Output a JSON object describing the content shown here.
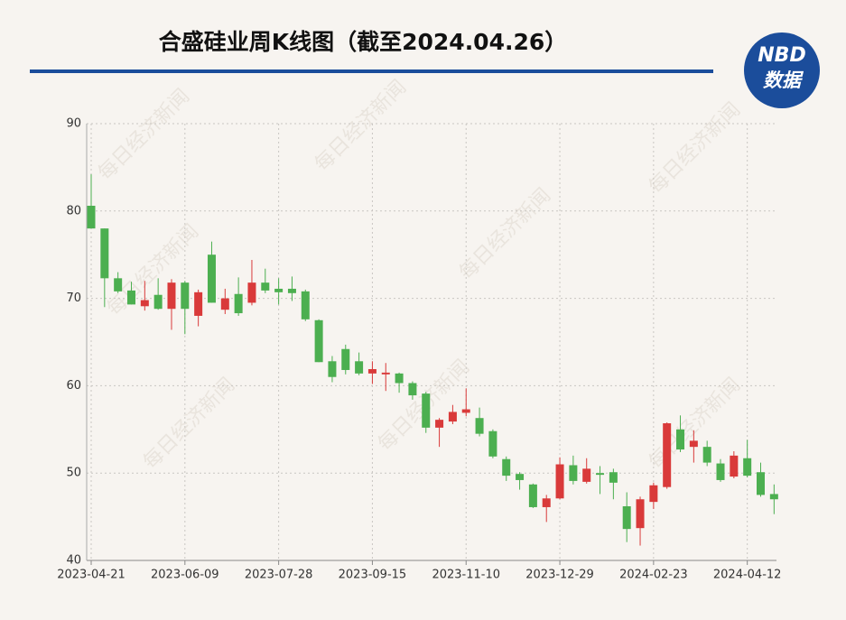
{
  "chart_data": {
    "type": "candlestick",
    "title": "合盛硅业周K线图（截至2024.04.26）",
    "logo": {
      "top": "NBD",
      "bottom": "数据"
    },
    "watermark": "每日经济新闻",
    "categories": [
      "2023-04-21",
      null,
      null,
      null,
      null,
      null,
      null,
      "2023-06-09",
      null,
      null,
      null,
      null,
      null,
      null,
      "2023-07-28",
      null,
      null,
      null,
      null,
      null,
      null,
      "2023-09-15",
      null,
      null,
      null,
      null,
      null,
      null,
      "2023-11-10",
      null,
      null,
      null,
      null,
      null,
      null,
      "2023-12-29",
      null,
      null,
      null,
      null,
      null,
      null,
      "2024-02-23",
      null,
      null,
      null,
      null,
      null,
      null,
      "2024-04-12",
      null,
      null
    ],
    "open": [
      80.6,
      78.0,
      72.3,
      70.9,
      69.1,
      70.4,
      68.8,
      71.8,
      68.0,
      75.0,
      68.7,
      70.5,
      69.5,
      71.8,
      71.1,
      71.1,
      70.8,
      67.5,
      62.8,
      64.2,
      62.8,
      61.4,
      61.3,
      61.4,
      60.3,
      59.1,
      55.2,
      55.9,
      56.9,
      56.3,
      54.8,
      51.6,
      49.9,
      48.7,
      46.1,
      47.1,
      50.9,
      49.0,
      50.0,
      50.1,
      46.2,
      43.7,
      46.7,
      48.4,
      55.0,
      53.0,
      53.0,
      51.1,
      49.6,
      51.7,
      50.1,
      47.6
    ],
    "high": [
      84.2,
      78.0,
      73.0,
      71.9,
      72.0,
      72.3,
      72.2,
      72.0,
      71.0,
      76.5,
      71.1,
      72.4,
      74.4,
      73.4,
      72.3,
      72.5,
      71.0,
      67.6,
      63.4,
      64.7,
      63.8,
      62.8,
      62.6,
      61.5,
      60.5,
      59.3,
      56.3,
      57.8,
      59.7,
      57.5,
      55.0,
      51.9,
      50.1,
      48.8,
      47.5,
      51.8,
      52.0,
      51.7,
      50.8,
      50.5,
      47.8,
      47.3,
      48.9,
      55.8,
      56.6,
      54.9,
      53.7,
      51.6,
      52.5,
      53.8,
      51.2,
      48.7
    ],
    "low": [
      78.0,
      69.0,
      70.6,
      69.3,
      68.6,
      68.7,
      66.4,
      65.9,
      66.8,
      69.5,
      68.2,
      68.0,
      69.2,
      70.6,
      69.3,
      69.7,
      67.4,
      62.7,
      60.4,
      61.3,
      61.2,
      60.2,
      59.4,
      59.2,
      58.4,
      54.6,
      53.0,
      55.6,
      56.5,
      54.2,
      51.7,
      49.1,
      48.1,
      46.0,
      44.4,
      47.0,
      48.7,
      48.8,
      47.6,
      47.0,
      42.1,
      41.7,
      45.9,
      48.2,
      52.4,
      51.2,
      50.8,
      49.0,
      49.4,
      49.5,
      47.3,
      45.3
    ],
    "close": [
      78.0,
      72.3,
      70.8,
      69.3,
      69.8,
      68.8,
      71.8,
      68.8,
      70.7,
      69.5,
      70.0,
      68.3,
      71.8,
      70.9,
      70.7,
      70.6,
      67.6,
      62.7,
      61.0,
      61.8,
      61.4,
      61.9,
      61.5,
      60.3,
      58.9,
      55.2,
      56.1,
      57.0,
      57.3,
      54.5,
      51.9,
      49.7,
      49.2,
      46.1,
      47.1,
      51.0,
      49.1,
      50.5,
      49.8,
      48.9,
      43.6,
      47.0,
      48.6,
      55.7,
      52.7,
      53.7,
      51.2,
      49.2,
      52.0,
      49.7,
      47.5,
      47.0
    ],
    "up_color": "#d93a3a",
    "down_color": "#4caf50",
    "ylim": [
      40,
      90
    ],
    "yticks": [
      40,
      50,
      60,
      70,
      80,
      90
    ],
    "grid": true
  }
}
